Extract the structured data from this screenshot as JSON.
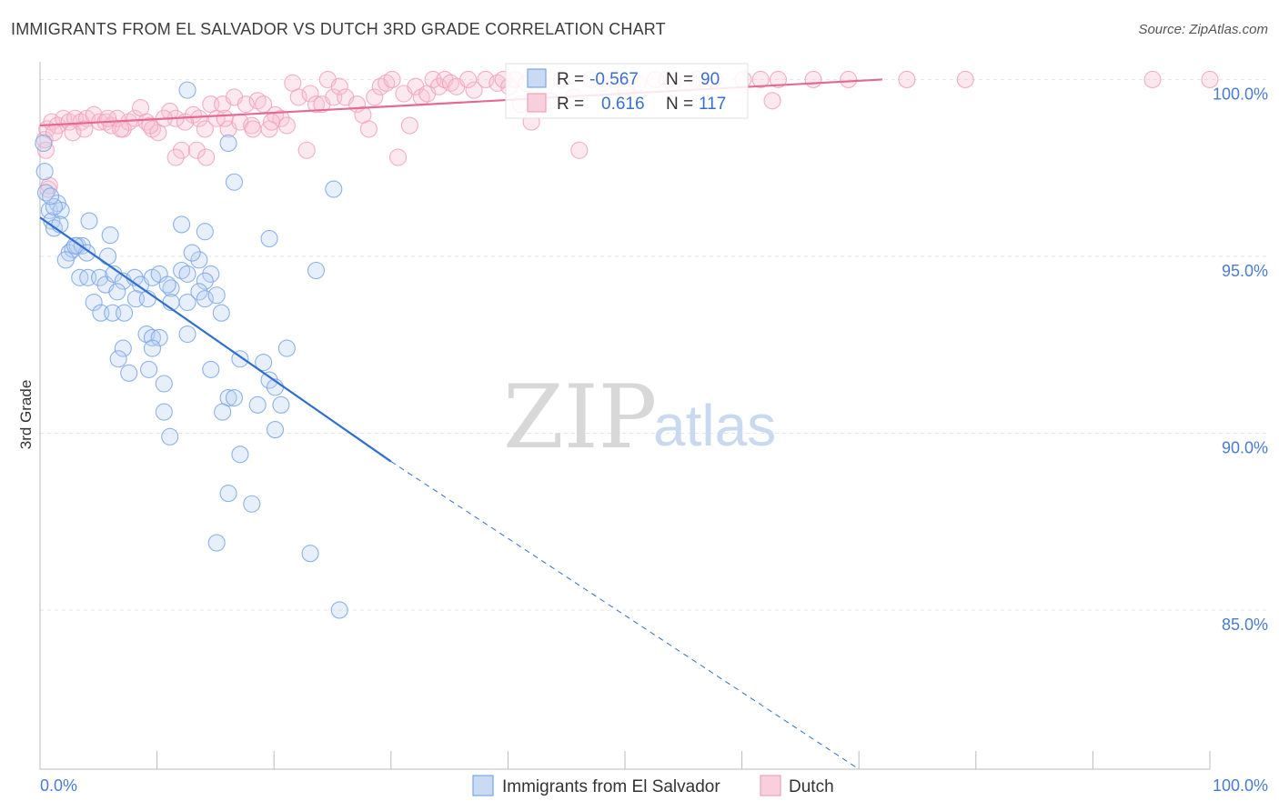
{
  "header": {
    "title": "IMMIGRANTS FROM EL SALVADOR VS DUTCH 3RD GRADE CORRELATION CHART",
    "source": "Source: ZipAtlas.com"
  },
  "watermark": {
    "zip": "ZIP",
    "atlas": "atlas"
  },
  "colors": {
    "blue": "#7aa6e6",
    "blue_line": "#2f6fcf",
    "pink": "#f2a0bb",
    "pink_line": "#e46a93",
    "axis_text": "#4a7bd0",
    "grid": "#e6e6e6"
  },
  "stats": {
    "row1": {
      "r_label": "R =",
      "r_value": "-0.567",
      "n_label": "N =",
      "n_value": "90"
    },
    "row2": {
      "r_label": "R =",
      "r_value": "0.616",
      "n_label": "N =",
      "n_value": "117"
    }
  },
  "chart_data": {
    "type": "scatter",
    "title": "IMMIGRANTS FROM EL SALVADOR VS DUTCH 3RD GRADE CORRELATION CHART",
    "xlabel": "",
    "ylabel": "3rd Grade",
    "xlim": [
      0,
      100
    ],
    "ylim": [
      80.5,
      100.5
    ],
    "x_tick_labels": {
      "left": "0.0%",
      "right": "100.0%"
    },
    "y_ticks": [
      {
        "value": 100,
        "label": "100.0%"
      },
      {
        "value": 95,
        "label": "95.0%"
      },
      {
        "value": 90,
        "label": "90.0%"
      },
      {
        "value": 85,
        "label": "85.0%"
      }
    ],
    "grid": true,
    "legend_position": "bottom-center",
    "series": [
      {
        "name": "Immigrants from El Salvador",
        "color": "#7aa6e6",
        "r": -0.567,
        "n": 90,
        "trend": {
          "x0": 0,
          "y0": 96.1,
          "x1": 30,
          "y1": 89.2,
          "dash_to_x": 70,
          "dash_to_y": 80.5
        },
        "points": [
          [
            0.3,
            98.2
          ],
          [
            0.4,
            97.4
          ],
          [
            0.5,
            96.8
          ],
          [
            0.8,
            96.3
          ],
          [
            1.0,
            96.0
          ],
          [
            1.2,
            95.8
          ],
          [
            1.5,
            96.5
          ],
          [
            1.8,
            96.3
          ],
          [
            1.7,
            95.9
          ],
          [
            2.5,
            95.1
          ],
          [
            2.8,
            95.2
          ],
          [
            3.2,
            95.3
          ],
          [
            3.6,
            95.3
          ],
          [
            4.0,
            95.1
          ],
          [
            6.0,
            95.6
          ],
          [
            5.8,
            95.0
          ],
          [
            4.2,
            96.0
          ],
          [
            3.4,
            94.4
          ],
          [
            4.1,
            94.4
          ],
          [
            5.1,
            94.4
          ],
          [
            5.6,
            94.2
          ],
          [
            6.3,
            94.5
          ],
          [
            7.1,
            94.3
          ],
          [
            8.1,
            94.4
          ],
          [
            8.6,
            94.2
          ],
          [
            9.6,
            94.4
          ],
          [
            10.2,
            94.5
          ],
          [
            11.2,
            94.1
          ],
          [
            12.1,
            94.6
          ],
          [
            12.6,
            94.5
          ],
          [
            13.6,
            94.9
          ],
          [
            14.6,
            94.5
          ],
          [
            14.1,
            94.3
          ],
          [
            13.0,
            95.1
          ],
          [
            4.6,
            93.7
          ],
          [
            5.2,
            93.4
          ],
          [
            6.2,
            93.4
          ],
          [
            7.2,
            93.4
          ],
          [
            8.2,
            93.8
          ],
          [
            9.2,
            93.8
          ],
          [
            11.2,
            93.7
          ],
          [
            12.6,
            93.7
          ],
          [
            13.6,
            94.0
          ],
          [
            14.1,
            93.8
          ],
          [
            15.1,
            93.9
          ],
          [
            15.5,
            93.4
          ],
          [
            9.1,
            92.8
          ],
          [
            9.6,
            92.7
          ],
          [
            10.2,
            92.7
          ],
          [
            12.6,
            92.8
          ],
          [
            9.6,
            92.4
          ],
          [
            7.1,
            92.4
          ],
          [
            6.7,
            92.1
          ],
          [
            7.6,
            91.7
          ],
          [
            9.3,
            91.8
          ],
          [
            10.6,
            91.4
          ],
          [
            14.6,
            91.8
          ],
          [
            17.1,
            92.1
          ],
          [
            19.1,
            92.0
          ],
          [
            19.6,
            91.5
          ],
          [
            21.1,
            92.4
          ],
          [
            20.1,
            91.3
          ],
          [
            16.1,
            91.0
          ],
          [
            16.6,
            91.0
          ],
          [
            18.6,
            90.8
          ],
          [
            20.6,
            90.8
          ],
          [
            15.6,
            90.6
          ],
          [
            10.6,
            90.6
          ],
          [
            11.1,
            89.9
          ],
          [
            20.1,
            90.1
          ],
          [
            17.1,
            89.4
          ],
          [
            16.1,
            88.3
          ],
          [
            18.1,
            88.0
          ],
          [
            15.1,
            86.9
          ],
          [
            23.1,
            86.6
          ],
          [
            25.6,
            85.0
          ],
          [
            12.6,
            99.7
          ],
          [
            16.1,
            98.2
          ],
          [
            16.6,
            97.1
          ],
          [
            25.1,
            96.9
          ],
          [
            14.1,
            95.7
          ],
          [
            19.6,
            95.5
          ],
          [
            23.6,
            94.6
          ],
          [
            12.1,
            95.9
          ],
          [
            3.0,
            95.3
          ],
          [
            2.2,
            94.9
          ],
          [
            1.2,
            96.4
          ],
          [
            0.9,
            96.7
          ],
          [
            10.9,
            94.2
          ],
          [
            6.6,
            94.0
          ]
        ]
      },
      {
        "name": "Dutch",
        "color": "#f2a0bb",
        "r": 0.616,
        "n": 117,
        "trend": {
          "x0": 0,
          "y0": 98.7,
          "x1": 72,
          "y1": 100.0
        },
        "points": [
          [
            0.4,
            98.3
          ],
          [
            0.6,
            98.6
          ],
          [
            0.7,
            96.9
          ],
          [
            1.0,
            98.8
          ],
          [
            1.5,
            98.7
          ],
          [
            2.0,
            98.9
          ],
          [
            2.5,
            98.8
          ],
          [
            3.0,
            98.9
          ],
          [
            3.5,
            98.8
          ],
          [
            4.0,
            98.9
          ],
          [
            4.6,
            99.0
          ],
          [
            5.1,
            98.8
          ],
          [
            5.6,
            98.8
          ],
          [
            6.1,
            98.7
          ],
          [
            6.6,
            98.9
          ],
          [
            7.1,
            98.6
          ],
          [
            7.6,
            98.8
          ],
          [
            8.1,
            98.9
          ],
          [
            8.6,
            99.2
          ],
          [
            9.1,
            98.8
          ],
          [
            9.6,
            98.6
          ],
          [
            10.1,
            98.5
          ],
          [
            11.1,
            99.1
          ],
          [
            11.6,
            98.9
          ],
          [
            12.1,
            98.0
          ],
          [
            13.1,
            99.0
          ],
          [
            13.6,
            98.9
          ],
          [
            14.1,
            98.6
          ],
          [
            14.6,
            99.3
          ],
          [
            15.1,
            98.9
          ],
          [
            15.6,
            99.3
          ],
          [
            16.1,
            98.6
          ],
          [
            16.6,
            99.5
          ],
          [
            17.1,
            98.8
          ],
          [
            17.6,
            99.3
          ],
          [
            18.1,
            98.7
          ],
          [
            18.6,
            99.4
          ],
          [
            19.1,
            99.3
          ],
          [
            19.6,
            98.6
          ],
          [
            20.1,
            99.0
          ],
          [
            20.6,
            98.9
          ],
          [
            21.1,
            98.7
          ],
          [
            21.6,
            99.9
          ],
          [
            22.1,
            99.5
          ],
          [
            23.1,
            99.6
          ],
          [
            23.6,
            99.3
          ],
          [
            24.1,
            99.3
          ],
          [
            24.6,
            100.0
          ],
          [
            25.1,
            99.5
          ],
          [
            25.6,
            99.8
          ],
          [
            26.1,
            99.5
          ],
          [
            27.1,
            99.3
          ],
          [
            27.6,
            99.0
          ],
          [
            28.1,
            98.6
          ],
          [
            28.6,
            99.5
          ],
          [
            29.1,
            99.8
          ],
          [
            29.6,
            99.9
          ],
          [
            30.1,
            100.0
          ],
          [
            31.1,
            99.6
          ],
          [
            31.6,
            98.7
          ],
          [
            32.1,
            99.8
          ],
          [
            32.6,
            99.5
          ],
          [
            33.1,
            99.6
          ],
          [
            33.6,
            100.0
          ],
          [
            34.1,
            99.8
          ],
          [
            34.6,
            100.0
          ],
          [
            35.1,
            99.9
          ],
          [
            35.6,
            99.8
          ],
          [
            36.6,
            100.0
          ],
          [
            37.1,
            99.7
          ],
          [
            38.1,
            100.0
          ],
          [
            39.1,
            99.9
          ],
          [
            39.6,
            100.0
          ],
          [
            40.1,
            99.8
          ],
          [
            40.6,
            100.0
          ],
          [
            41.1,
            99.3
          ],
          [
            41.6,
            99.9
          ],
          [
            42.6,
            100.0
          ],
          [
            43.6,
            99.4
          ],
          [
            44.6,
            100.0
          ],
          [
            45.6,
            99.5
          ],
          [
            46.1,
            98.0
          ],
          [
            47.1,
            100.0
          ],
          [
            48.1,
            99.9
          ],
          [
            49.1,
            100.0
          ],
          [
            50.1,
            99.7
          ],
          [
            51.1,
            99.9
          ],
          [
            52.6,
            100.0
          ],
          [
            53.6,
            100.0
          ],
          [
            54.1,
            99.9
          ],
          [
            56.1,
            100.0
          ],
          [
            57.6,
            100.0
          ],
          [
            60.1,
            100.0
          ],
          [
            61.6,
            100.0
          ],
          [
            62.6,
            99.4
          ],
          [
            63.1,
            100.0
          ],
          [
            66.1,
            100.0
          ],
          [
            69.1,
            100.0
          ],
          [
            74.1,
            100.0
          ],
          [
            79.1,
            100.0
          ],
          [
            95.1,
            100.0
          ],
          [
            100.0,
            100.0
          ],
          [
            11.6,
            97.8
          ],
          [
            13.4,
            98.0
          ],
          [
            14.2,
            97.8
          ],
          [
            22.8,
            98.0
          ],
          [
            30.6,
            97.8
          ],
          [
            42.0,
            98.8
          ],
          [
            0.8,
            97.0
          ],
          [
            0.5,
            98.0
          ],
          [
            1.2,
            98.5
          ],
          [
            2.8,
            98.5
          ],
          [
            3.8,
            98.6
          ],
          [
            5.8,
            98.9
          ],
          [
            6.9,
            98.6
          ],
          [
            9.4,
            98.7
          ],
          [
            10.6,
            98.9
          ],
          [
            12.4,
            98.8
          ],
          [
            15.8,
            98.9
          ],
          [
            18.2,
            98.6
          ],
          [
            19.8,
            98.8
          ]
        ]
      }
    ]
  },
  "legend": {
    "items": [
      {
        "label": "Immigrants from El Salvador"
      },
      {
        "label": "Dutch"
      }
    ]
  }
}
